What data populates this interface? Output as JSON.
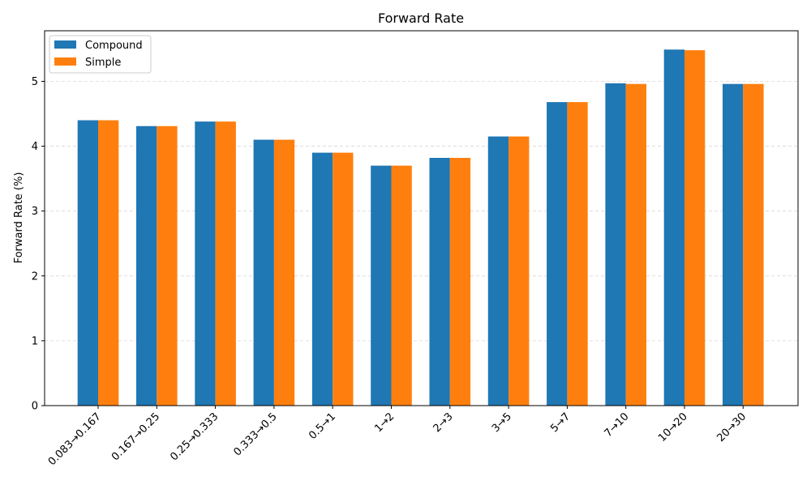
{
  "chart_data": {
    "type": "bar",
    "title": "Forward Rate",
    "xlabel": "",
    "ylabel": "Forward Rate (%)",
    "ylim": [
      0,
      5.78
    ],
    "yticks": [
      0,
      1,
      2,
      3,
      4,
      5
    ],
    "grid": "y-dashed",
    "legend_position": "top-left",
    "categories": [
      "0.083→0.167",
      "0.167→0.25",
      "0.25→0.333",
      "0.333→0.5",
      "0.5→1",
      "1→2",
      "2→3",
      "3→5",
      "5→7",
      "7→10",
      "10→20",
      "20→30"
    ],
    "series": [
      {
        "name": "Compound",
        "color": "#1f77b4",
        "values": [
          4.4,
          4.31,
          4.38,
          4.1,
          3.9,
          3.7,
          3.82,
          4.15,
          4.68,
          4.97,
          5.49,
          4.96
        ]
      },
      {
        "name": "Simple",
        "color": "#ff7f0e",
        "values": [
          4.4,
          4.31,
          4.38,
          4.1,
          3.9,
          3.7,
          3.82,
          4.15,
          4.68,
          4.96,
          5.48,
          4.96
        ]
      }
    ]
  }
}
